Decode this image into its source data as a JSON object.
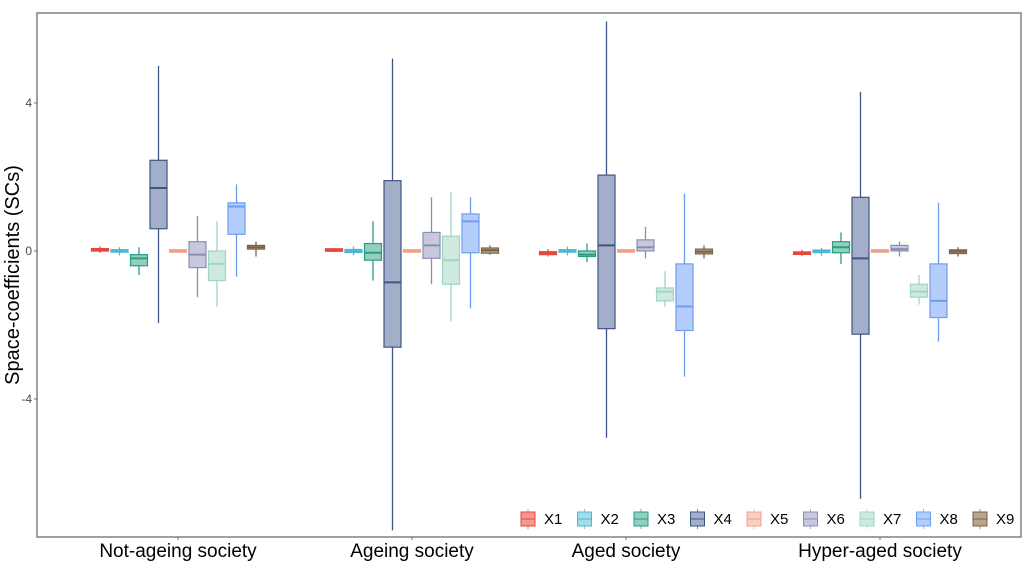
{
  "chart_data": {
    "type": "boxplot",
    "title": "",
    "xlabel": "",
    "ylabel": "Space-coefficients (SCs)",
    "ylim": [
      -7.73,
      6.43
    ],
    "yticks": [
      4,
      0,
      -4
    ],
    "grid": false,
    "legend_position": "bottom-right",
    "categories": [
      "Not-ageing society",
      "Ageing society",
      "Aged society",
      "Hyper-aged society"
    ],
    "series": [
      {
        "name": "X1",
        "color": "#e8463c",
        "fill": "#f09a93",
        "values": [
          {
            "lower": -0.05,
            "q1": 0.0,
            "median": 0.03,
            "q3": 0.06,
            "upper": 0.12
          },
          {
            "lower": -0.03,
            "q1": 0.0,
            "median": 0.02,
            "q3": 0.05,
            "upper": 0.08
          },
          {
            "lower": -0.15,
            "q1": -0.1,
            "median": -0.06,
            "q3": -0.02,
            "upper": 0.05
          },
          {
            "lower": -0.13,
            "q1": -0.09,
            "median": -0.06,
            "q3": -0.03,
            "upper": 0.03
          }
        ]
      },
      {
        "name": "X2",
        "color": "#4db8d4",
        "fill": "#a3dcea",
        "values": [
          {
            "lower": -0.12,
            "q1": -0.03,
            "median": 0.0,
            "q3": 0.03,
            "upper": 0.1
          },
          {
            "lower": -0.12,
            "q1": -0.04,
            "median": 0.0,
            "q3": 0.04,
            "upper": 0.12
          },
          {
            "lower": -0.12,
            "q1": -0.03,
            "median": 0.0,
            "q3": 0.03,
            "upper": 0.12
          },
          {
            "lower": -0.13,
            "q1": -0.04,
            "median": -0.01,
            "q3": 0.02,
            "upper": 0.08
          }
        ]
      },
      {
        "name": "X3",
        "color": "#2a9d80",
        "fill": "#92cfbf",
        "values": [
          {
            "lower": -0.65,
            "q1": -0.4,
            "median": -0.2,
            "q3": -0.1,
            "upper": 0.1
          },
          {
            "lower": -0.8,
            "q1": -0.25,
            "median": -0.05,
            "q3": 0.2,
            "upper": 0.8
          },
          {
            "lower": -0.3,
            "q1": -0.15,
            "median": -0.1,
            "q3": 0.0,
            "upper": 0.2
          },
          {
            "lower": -0.35,
            "q1": -0.05,
            "median": 0.1,
            "q3": 0.25,
            "upper": 0.5
          }
        ]
      },
      {
        "name": "X4",
        "color": "#3f5585",
        "fill": "#a3aec8",
        "values": [
          {
            "lower": -1.95,
            "q1": 0.6,
            "median": 1.7,
            "q3": 2.45,
            "upper": 5.0
          },
          {
            "lower": -7.55,
            "q1": -2.6,
            "median": -0.85,
            "q3": 1.9,
            "upper": 5.2
          },
          {
            "lower": -5.05,
            "q1": -2.1,
            "median": 0.15,
            "q3": 2.05,
            "upper": 6.2
          },
          {
            "lower": -6.7,
            "q1": -2.25,
            "median": -0.2,
            "q3": 1.45,
            "upper": 4.3
          }
        ]
      },
      {
        "name": "X5",
        "color": "#f2a08a",
        "fill": "#f8cfc3",
        "values": [
          {
            "lower": -0.02,
            "q1": -0.01,
            "median": 0.0,
            "q3": 0.01,
            "upper": 0.02
          },
          {
            "lower": -0.02,
            "q1": -0.01,
            "median": 0.0,
            "q3": 0.01,
            "upper": 0.02
          },
          {
            "lower": -0.02,
            "q1": -0.01,
            "median": 0.0,
            "q3": 0.01,
            "upper": 0.02
          },
          {
            "lower": -0.02,
            "q1": -0.01,
            "median": 0.0,
            "q3": 0.01,
            "upper": 0.02
          }
        ]
      },
      {
        "name": "X6",
        "color": "#8a8fb0",
        "fill": "#c6c9dd",
        "values": [
          {
            "lower": -1.25,
            "q1": -0.45,
            "median": -0.1,
            "q3": 0.25,
            "upper": 0.95
          },
          {
            "lower": -0.9,
            "q1": -0.2,
            "median": 0.15,
            "q3": 0.5,
            "upper": 1.45
          },
          {
            "lower": -0.2,
            "q1": 0.0,
            "median": 0.1,
            "q3": 0.3,
            "upper": 0.65
          },
          {
            "lower": -0.15,
            "q1": 0.0,
            "median": 0.05,
            "q3": 0.15,
            "upper": 0.25
          }
        ]
      },
      {
        "name": "X7",
        "color": "#9fd5c4",
        "fill": "#cfe9e0",
        "values": [
          {
            "lower": -1.5,
            "q1": -0.8,
            "median": -0.35,
            "q3": 0.0,
            "upper": 0.8
          },
          {
            "lower": -1.9,
            "q1": -0.9,
            "median": -0.25,
            "q3": 0.4,
            "upper": 1.6
          },
          {
            "lower": -1.5,
            "q1": -1.35,
            "median": -1.1,
            "q3": -1.0,
            "upper": -0.55
          },
          {
            "lower": -1.45,
            "q1": -1.25,
            "median": -1.1,
            "q3": -0.9,
            "upper": -0.65
          }
        ]
      },
      {
        "name": "X8",
        "color": "#6d9df0",
        "fill": "#b5cdfa",
        "values": [
          {
            "lower": -0.7,
            "q1": 0.45,
            "median": 1.2,
            "q3": 1.3,
            "upper": 1.8
          },
          {
            "lower": -1.55,
            "q1": -0.05,
            "median": 0.8,
            "q3": 1.0,
            "upper": 1.45
          },
          {
            "lower": -3.4,
            "q1": -2.15,
            "median": -1.5,
            "q3": -0.35,
            "upper": 1.55
          },
          {
            "lower": -2.45,
            "q1": -1.8,
            "median": -1.35,
            "q3": -0.35,
            "upper": 1.3
          }
        ]
      },
      {
        "name": "X9",
        "color": "#7a6248",
        "fill": "#b8a590",
        "values": [
          {
            "lower": -0.15,
            "q1": 0.05,
            "median": 0.1,
            "q3": 0.15,
            "upper": 0.25
          },
          {
            "lower": -0.1,
            "q1": -0.06,
            "median": 0.02,
            "q3": 0.08,
            "upper": 0.15
          },
          {
            "lower": -0.2,
            "q1": -0.08,
            "median": -0.02,
            "q3": 0.05,
            "upper": 0.15
          },
          {
            "lower": -0.15,
            "q1": -0.07,
            "median": -0.02,
            "q3": 0.03,
            "upper": 0.1
          }
        ]
      }
    ]
  }
}
